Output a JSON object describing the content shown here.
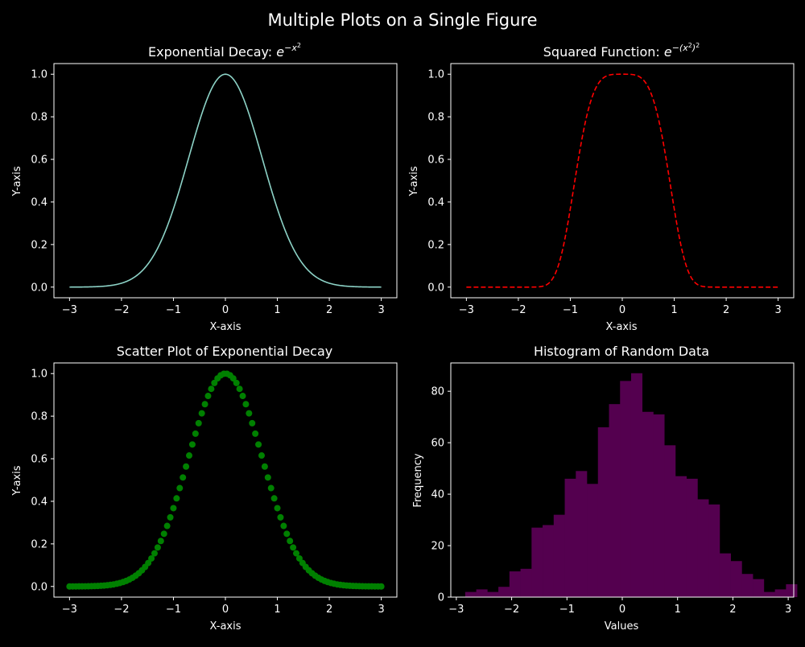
{
  "figure": {
    "title": "Multiple Plots on a Single Figure"
  },
  "chart_data": [
    {
      "type": "line",
      "title_base": "Exponential Decay: ",
      "title_math": {
        "base": "e",
        "exp": "−x",
        "exp_sup": "2"
      },
      "xlabel": "X-axis",
      "ylabel": "Y-axis",
      "xlim": [
        -3.3,
        3.3
      ],
      "ylim": [
        -0.05,
        1.05
      ],
      "xticks": [
        -3,
        -2,
        -1,
        0,
        1,
        2,
        3
      ],
      "yticks": [
        0.0,
        0.2,
        0.4,
        0.6,
        0.8,
        1.0
      ],
      "ytick_labels": [
        "0.0",
        "0.2",
        "0.4",
        "0.6",
        "0.8",
        "1.0"
      ],
      "function": "exp(-x^2)",
      "x_range": [
        -3,
        3
      ],
      "color": "#8dd3c7",
      "line_style": "solid"
    },
    {
      "type": "line",
      "title_base": "Squared Function: ",
      "title_math": {
        "base": "e",
        "exp": "−(x",
        "exp_sup": "2",
        "exp_end": ")",
        "exp_end_sup": "2"
      },
      "xlabel": "X-axis",
      "ylabel": "Y-axis",
      "xlim": [
        -3.3,
        3.3
      ],
      "ylim": [
        -0.05,
        1.05
      ],
      "xticks": [
        -3,
        -2,
        -1,
        0,
        1,
        2,
        3
      ],
      "yticks": [
        0.0,
        0.2,
        0.4,
        0.6,
        0.8,
        1.0
      ],
      "ytick_labels": [
        "0.0",
        "0.2",
        "0.4",
        "0.6",
        "0.8",
        "1.0"
      ],
      "function": "exp(-x^4)",
      "x_range": [
        -3,
        3
      ],
      "color": "#ff0000",
      "line_style": "dashed"
    },
    {
      "type": "scatter",
      "title": "Scatter Plot of Exponential Decay",
      "xlabel": "X-axis",
      "ylabel": "Y-axis",
      "xlim": [
        -3.3,
        3.3
      ],
      "ylim": [
        -0.05,
        1.05
      ],
      "xticks": [
        -3,
        -2,
        -1,
        0,
        1,
        2,
        3
      ],
      "yticks": [
        0.0,
        0.2,
        0.4,
        0.6,
        0.8,
        1.0
      ],
      "ytick_labels": [
        "0.0",
        "0.2",
        "0.4",
        "0.6",
        "0.8",
        "1.0"
      ],
      "function": "exp(-x^2)",
      "x_range": [
        -3,
        3
      ],
      "n_points": 100,
      "color": "#008000"
    },
    {
      "type": "bar",
      "title": "Histogram of Random Data",
      "xlabel": "Values",
      "ylabel": "Frequency",
      "xlim": [
        -3.1,
        3.1
      ],
      "ylim": [
        0,
        91
      ],
      "xticks": [
        -3,
        -2,
        -1,
        0,
        1,
        2,
        3
      ],
      "yticks": [
        0,
        20,
        40,
        60,
        80
      ],
      "ytick_labels": [
        "0",
        "20",
        "40",
        "60",
        "80"
      ],
      "bin_start": -2.84,
      "bin_width": 0.2,
      "values": [
        2,
        3,
        2,
        4,
        10,
        11,
        27,
        28,
        32,
        46,
        49,
        44,
        66,
        75,
        84,
        87,
        72,
        71,
        59,
        47,
        46,
        38,
        36,
        17,
        14,
        9,
        7,
        2,
        3,
        5
      ],
      "color": "#54004f"
    }
  ]
}
